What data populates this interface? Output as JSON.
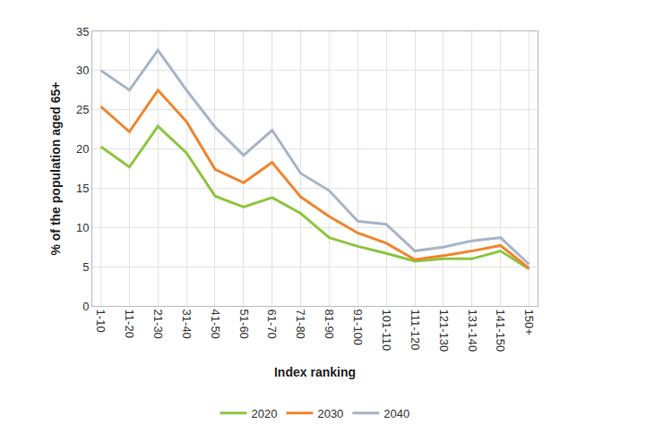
{
  "chart_data": {
    "type": "line",
    "x_label": "Index ranking",
    "y_label": "% of the population aged 65+",
    "categories": [
      "1-10",
      "11-20",
      "21-30",
      "31-40",
      "41-50",
      "51-60",
      "61-70",
      "71-80",
      "81-90",
      "91-100",
      "101-110",
      "111-120",
      "121-130",
      "131-140",
      "141-150",
      "150+"
    ],
    "series": [
      {
        "name": "2020",
        "color": "#8cc63f",
        "values": [
          20.3,
          17.7,
          22.9,
          19.5,
          14.0,
          12.6,
          13.8,
          11.8,
          8.7,
          7.6,
          6.7,
          5.7,
          6.0,
          6.0,
          7.0,
          4.7
        ]
      },
      {
        "name": "2030",
        "color": "#f0852d",
        "values": [
          25.4,
          22.2,
          27.5,
          23.5,
          17.4,
          15.7,
          18.3,
          13.9,
          11.4,
          9.3,
          8.0,
          5.9,
          6.4,
          7.0,
          7.7,
          4.8
        ]
      },
      {
        "name": "2040",
        "color": "#a8b4c7",
        "values": [
          30.0,
          27.5,
          32.6,
          27.5,
          22.8,
          19.2,
          22.4,
          16.9,
          14.7,
          10.8,
          10.4,
          7.0,
          7.5,
          8.3,
          8.7,
          5.3
        ]
      }
    ],
    "ylim": [
      0,
      35
    ],
    "yticks": [
      0,
      5,
      10,
      15,
      20,
      25,
      30,
      35
    ],
    "grid": true,
    "legend": "bottom"
  }
}
